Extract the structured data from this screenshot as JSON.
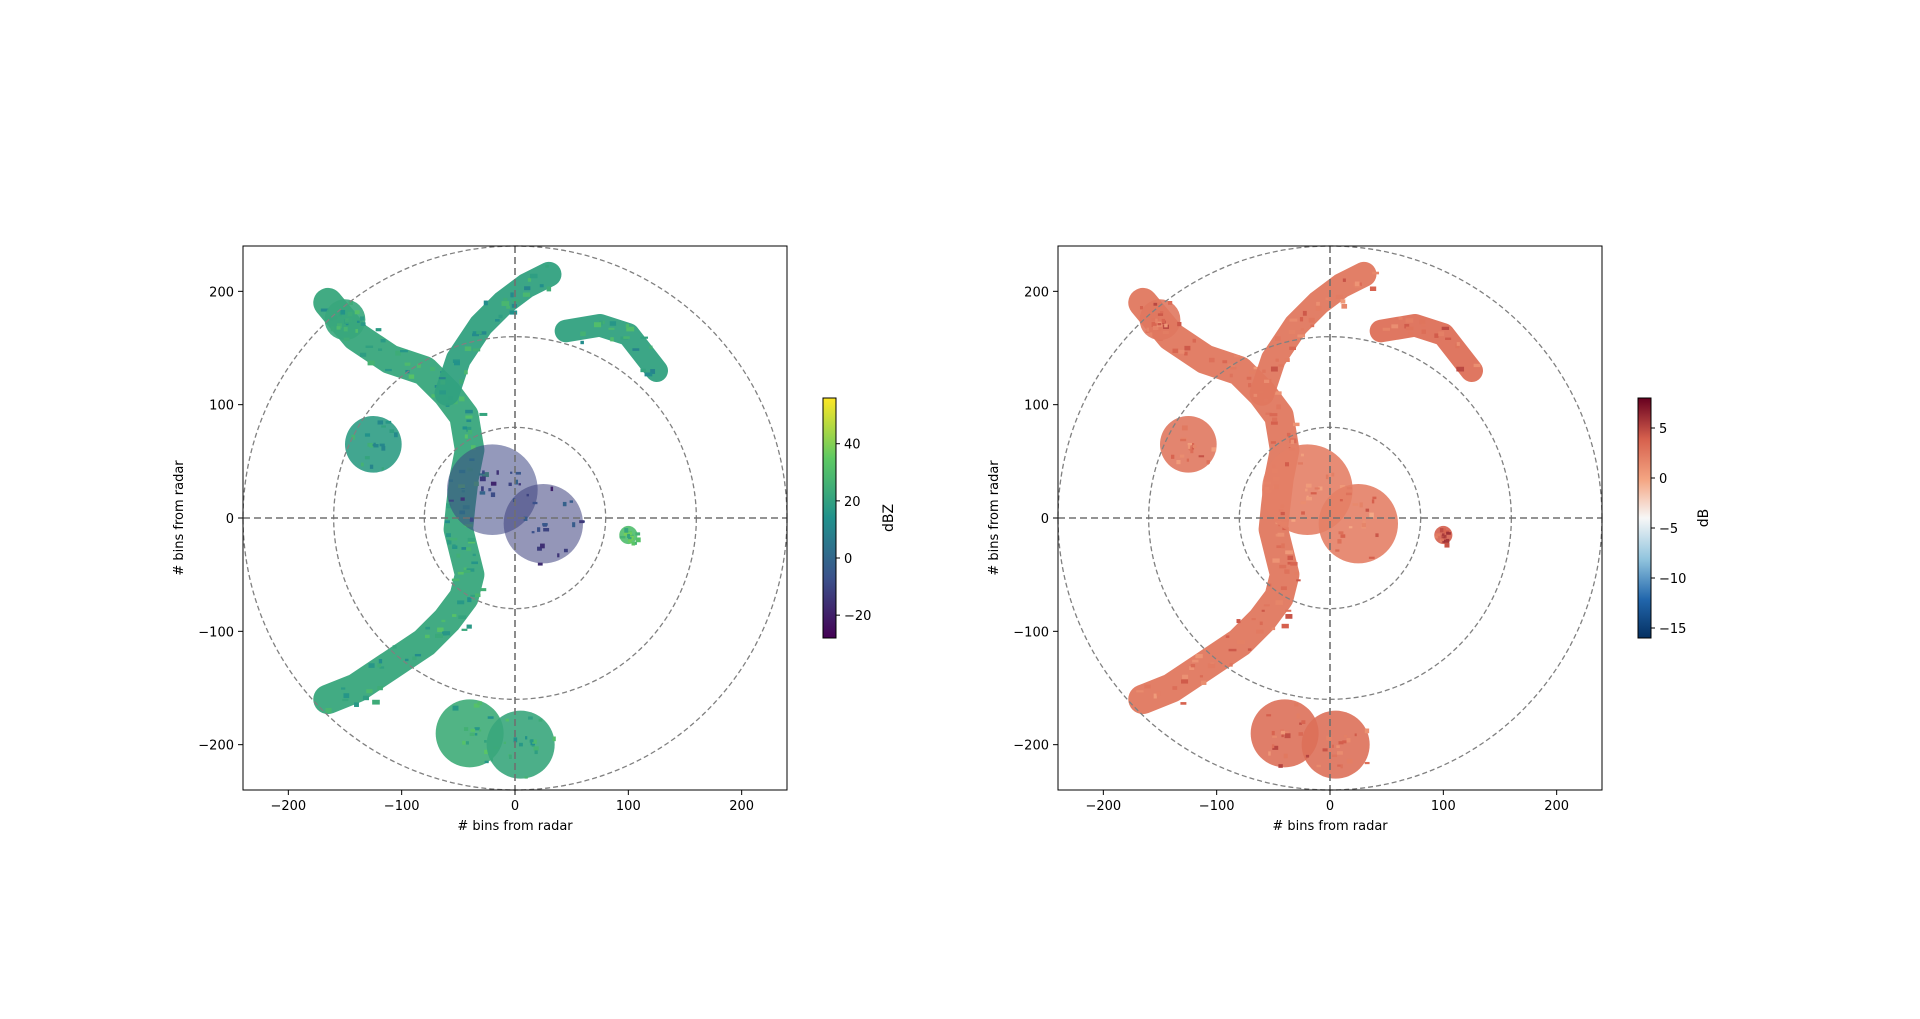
{
  "chart_data": [
    {
      "type": "heatmap",
      "title": "",
      "xlabel": "# bins from radar",
      "ylabel": "# bins from radar",
      "xlim": [
        -240,
        240
      ],
      "ylim": [
        -240,
        240
      ],
      "xticks": [
        -200,
        -100,
        0,
        100,
        200
      ],
      "yticks": [
        -200,
        -100,
        0,
        100,
        200
      ],
      "range_rings": [
        80,
        160,
        240
      ],
      "colorbar": {
        "label": "dBZ",
        "colormap": "viridis",
        "min": -28,
        "max": 56,
        "ticks": [
          -20,
          0,
          20,
          40
        ]
      },
      "echo_regions": [
        {
          "type": "band",
          "points": [
            [
              -165,
              190
            ],
            [
              -140,
              160
            ],
            [
              -110,
              140
            ],
            [
              -80,
              130
            ],
            [
              -60,
              110
            ],
            [
              -45,
              90
            ],
            [
              -40,
              60
            ],
            [
              -45,
              35
            ],
            [
              -48,
              10
            ],
            [
              -50,
              -10
            ],
            [
              -45,
              -30
            ],
            [
              -40,
              -50
            ],
            [
              -45,
              -70
            ],
            [
              -60,
              -90
            ],
            [
              -80,
              -110
            ],
            [
              -110,
              -130
            ],
            [
              -140,
              -150
            ],
            [
              -165,
              -160
            ]
          ],
          "width": 26,
          "value": 22
        },
        {
          "type": "band",
          "points": [
            [
              -60,
              110
            ],
            [
              -50,
              140
            ],
            [
              -30,
              170
            ],
            [
              -10,
              190
            ],
            [
              10,
              205
            ],
            [
              30,
              215
            ]
          ],
          "width": 22,
          "value": 20
        },
        {
          "type": "band",
          "points": [
            [
              45,
              165
            ],
            [
              75,
              170
            ],
            [
              100,
              162
            ],
            [
              125,
              130
            ]
          ],
          "width": 20,
          "value": 20
        },
        {
          "type": "blob",
          "center": [
            -125,
            65
          ],
          "radius": 25,
          "value": 18
        },
        {
          "type": "blob",
          "center": [
            -150,
            175
          ],
          "radius": 18,
          "value": 22
        },
        {
          "type": "blob",
          "center": [
            -40,
            -190
          ],
          "radius": 30,
          "value": 24
        },
        {
          "type": "blob",
          "center": [
            5,
            -200
          ],
          "radius": 30,
          "value": 22
        },
        {
          "type": "blob",
          "center": [
            -20,
            25
          ],
          "radius": 40,
          "value": -10
        },
        {
          "type": "blob",
          "center": [
            25,
            -5
          ],
          "radius": 35,
          "value": -12
        },
        {
          "type": "blob",
          "center": [
            100,
            -15
          ],
          "radius": 8,
          "value": 30
        }
      ]
    },
    {
      "type": "heatmap",
      "title": "",
      "xlabel": "# bins from radar",
      "ylabel": "# bins from radar",
      "xlim": [
        -240,
        240
      ],
      "ylim": [
        -240,
        240
      ],
      "xticks": [
        -200,
        -100,
        0,
        100,
        200
      ],
      "yticks": [
        -200,
        -100,
        0,
        100,
        200
      ],
      "range_rings": [
        80,
        160,
        240
      ],
      "colorbar": {
        "label": "dB",
        "colormap": "RdBu_r",
        "min": -16,
        "max": 8,
        "ticks": [
          -15,
          -10,
          -5,
          0,
          5
        ]
      },
      "echo_regions": [
        {
          "type": "band",
          "points": [
            [
              -165,
              190
            ],
            [
              -140,
              160
            ],
            [
              -110,
              140
            ],
            [
              -80,
              130
            ],
            [
              -60,
              110
            ],
            [
              -45,
              90
            ],
            [
              -40,
              60
            ],
            [
              -45,
              35
            ],
            [
              -48,
              10
            ],
            [
              -50,
              -10
            ],
            [
              -45,
              -30
            ],
            [
              -40,
              -50
            ],
            [
              -45,
              -70
            ],
            [
              -60,
              -90
            ],
            [
              -80,
              -110
            ],
            [
              -110,
              -130
            ],
            [
              -140,
              -150
            ],
            [
              -165,
              -160
            ]
          ],
          "width": 26,
          "value": 2.5
        },
        {
          "type": "band",
          "points": [
            [
              -60,
              110
            ],
            [
              -50,
              140
            ],
            [
              -30,
              170
            ],
            [
              -10,
              190
            ],
            [
              10,
              205
            ],
            [
              30,
              215
            ]
          ],
          "width": 22,
          "value": 2.5
        },
        {
          "type": "band",
          "points": [
            [
              45,
              165
            ],
            [
              75,
              170
            ],
            [
              100,
              162
            ],
            [
              125,
              130
            ]
          ],
          "width": 20,
          "value": 3
        },
        {
          "type": "blob",
          "center": [
            -125,
            65
          ],
          "radius": 25,
          "value": 2.5
        },
        {
          "type": "blob",
          "center": [
            -150,
            175
          ],
          "radius": 18,
          "value": 2.5
        },
        {
          "type": "blob",
          "center": [
            -40,
            -190
          ],
          "radius": 30,
          "value": 3
        },
        {
          "type": "blob",
          "center": [
            5,
            -200
          ],
          "radius": 30,
          "value": 3
        },
        {
          "type": "blob",
          "center": [
            -20,
            25
          ],
          "radius": 40,
          "value": 2
        },
        {
          "type": "blob",
          "center": [
            25,
            -5
          ],
          "radius": 35,
          "value": 2
        },
        {
          "type": "blob",
          "center": [
            100,
            -15
          ],
          "radius": 8,
          "value": 4
        }
      ]
    }
  ]
}
